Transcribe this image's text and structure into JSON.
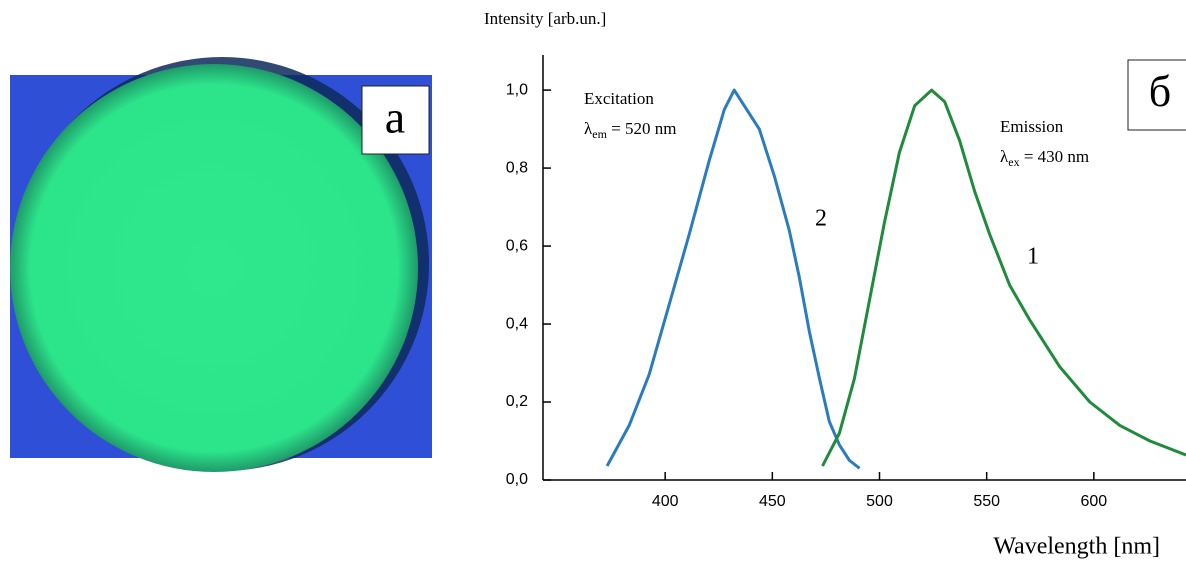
{
  "photo_label": "а",
  "chart_data": {
    "type": "line",
    "panel_label": "б",
    "ylabel": "Intensity [arb.un.]",
    "xlabel": "Wavelength [nm]",
    "xlim": [
      343,
      643
    ],
    "ylim": [
      0,
      1.09
    ],
    "xticks": [
      400,
      450,
      500,
      550,
      600
    ],
    "yticks": [
      {
        "value": 0,
        "label": "0,0"
      },
      {
        "value": 0.2,
        "label": "0,2"
      },
      {
        "value": 0.4,
        "label": "0,4"
      },
      {
        "value": 0.6,
        "label": "0,6"
      },
      {
        "value": 0.8,
        "label": "0,8"
      },
      {
        "value": 1.0,
        "label": "1,0"
      }
    ],
    "series": [
      {
        "name": "Excitation",
        "color": "#2b7bbf",
        "curve_label": "2",
        "annotation": {
          "symbol": "λ",
          "subscript": "em",
          "rest": " = 520 nm"
        },
        "x": [
          372.9,
          383.2,
          392.5,
          401.9,
          411.2,
          420.6,
          427.6,
          432.2,
          443.9,
          450.9,
          457.9,
          462.6,
          467.3,
          472.0,
          476.6,
          481.3,
          486.0,
          490.7
        ],
        "values": [
          0.036,
          0.14,
          0.27,
          0.45,
          0.63,
          0.82,
          0.95,
          1.0,
          0.9,
          0.78,
          0.64,
          0.52,
          0.38,
          0.26,
          0.15,
          0.09,
          0.05,
          0.03
        ]
      },
      {
        "name": "Emission",
        "color": "#1f8b3b",
        "curve_label": "1",
        "annotation": {
          "symbol": "λ",
          "subscript": "ex",
          "rest": " = 430 nm"
        },
        "x": [
          473.4,
          481.3,
          488.3,
          495.3,
          502.3,
          509.3,
          516.4,
          524.3,
          530.4,
          537.4,
          544.4,
          551.4,
          560.7,
          570.1,
          584.1,
          598.1,
          612.1,
          626.2,
          643
        ],
        "values": [
          0.036,
          0.12,
          0.26,
          0.46,
          0.66,
          0.84,
          0.96,
          1.0,
          0.97,
          0.87,
          0.74,
          0.63,
          0.5,
          0.41,
          0.29,
          0.2,
          0.14,
          0.1,
          0.064
        ]
      }
    ]
  }
}
